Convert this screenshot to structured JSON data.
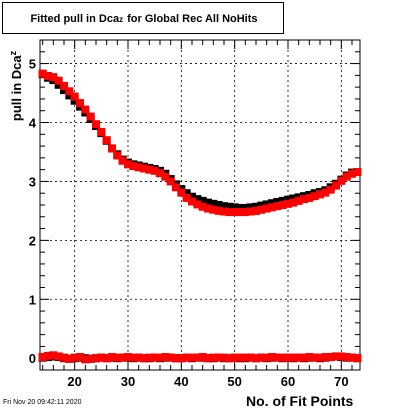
{
  "chart_data": {
    "type": "scatter",
    "title_prefix": "Fitted pull in Dca",
    "title_sub": "z",
    "title_suffix": " for Global Rec All NoHits",
    "xlabel": "No. of Fit Points",
    "ylabel_prefix": "pull in Dca",
    "ylabel_sub": "z",
    "xlim": [
      13.5,
      73.5
    ],
    "ylim": [
      -0.2,
      5.4
    ],
    "xticks": [
      "20",
      "30",
      "40",
      "50",
      "60",
      "70"
    ],
    "xtick_values": [
      20,
      30,
      40,
      50,
      60,
      70
    ],
    "yticks": [
      "0",
      "1",
      "2",
      "3",
      "4",
      "5"
    ],
    "ytick_values": [
      0,
      1,
      2,
      3,
      4,
      5
    ],
    "grid": true,
    "x": [
      14,
      15,
      16,
      17,
      18,
      19,
      20,
      21,
      22,
      23,
      24,
      25,
      26,
      27,
      28,
      29,
      30,
      31,
      32,
      33,
      34,
      35,
      36,
      37,
      38,
      39,
      40,
      41,
      42,
      43,
      44,
      45,
      46,
      47,
      48,
      49,
      50,
      51,
      52,
      53,
      54,
      55,
      56,
      57,
      58,
      59,
      60,
      61,
      62,
      63,
      64,
      65,
      66,
      67,
      68,
      69,
      70,
      71,
      72,
      73
    ],
    "series": [
      {
        "color": "#000000",
        "values": [
          4.82,
          4.76,
          4.72,
          4.64,
          4.55,
          4.46,
          4.37,
          4.27,
          4.17,
          4.06,
          3.94,
          3.82,
          3.69,
          3.56,
          3.46,
          3.37,
          3.32,
          3.29,
          3.27,
          3.25,
          3.23,
          3.21,
          3.18,
          3.13,
          3.04,
          2.95,
          2.87,
          2.8,
          2.74,
          2.7,
          2.67,
          2.64,
          2.62,
          2.6,
          2.58,
          2.57,
          2.56,
          2.55,
          2.55,
          2.56,
          2.57,
          2.59,
          2.61,
          2.63,
          2.65,
          2.67,
          2.69,
          2.71,
          2.73,
          2.75,
          2.77,
          2.8,
          2.82,
          2.85,
          2.9,
          2.96,
          3.03,
          3.1,
          3.15,
          3.16
        ]
      },
      {
        "color": "#ff0000",
        "values": [
          4.83,
          4.79,
          4.77,
          4.71,
          4.62,
          4.53,
          4.44,
          4.33,
          4.22,
          4.1,
          3.97,
          3.84,
          3.7,
          3.56,
          3.44,
          3.35,
          3.29,
          3.26,
          3.24,
          3.22,
          3.2,
          3.18,
          3.14,
          3.08,
          3.0,
          2.9,
          2.81,
          2.72,
          2.66,
          2.61,
          2.57,
          2.54,
          2.52,
          2.5,
          2.49,
          2.48,
          2.48,
          2.48,
          2.48,
          2.49,
          2.5,
          2.52,
          2.54,
          2.56,
          2.58,
          2.6,
          2.62,
          2.64,
          2.67,
          2.7,
          2.72,
          2.75,
          2.78,
          2.81,
          2.86,
          2.93,
          3.01,
          3.08,
          3.13,
          3.16
        ]
      },
      {
        "color": "#000000",
        "values": [
          0.01,
          0.02,
          0.03,
          0.02,
          0.0,
          -0.01,
          0.0,
          0.01,
          0.0,
          -0.01,
          0.0,
          0.01,
          0.0,
          0.01,
          0.0,
          0.01,
          0.01,
          0.0,
          0.01,
          0.0,
          0.0,
          0.01,
          0.0,
          0.01,
          0.01,
          0.0,
          0.0,
          0.01,
          0.0,
          0.01,
          0.01,
          0.0,
          0.0,
          0.01,
          0.0,
          0.0,
          0.01,
          0.0,
          0.0,
          0.01,
          0.0,
          0.01,
          0.0,
          0.01,
          0.01,
          0.0,
          0.01,
          0.0,
          0.01,
          0.0,
          0.01,
          0.01,
          0.0,
          0.01,
          0.02,
          0.03,
          0.02,
          0.01,
          0.01,
          0.0
        ]
      },
      {
        "color": "#ff0000",
        "values": [
          0.02,
          0.04,
          0.05,
          0.03,
          0.01,
          -0.01,
          0.01,
          0.02,
          -0.02,
          -0.01,
          0.0,
          0.01,
          0.0,
          0.02,
          0.01,
          0.01,
          0.02,
          0.01,
          0.01,
          0.0,
          0.01,
          0.01,
          0.01,
          0.02,
          0.01,
          0.0,
          0.0,
          0.01,
          0.01,
          0.01,
          0.02,
          0.0,
          0.01,
          0.01,
          0.01,
          0.0,
          0.01,
          0.01,
          0.01,
          0.01,
          0.0,
          0.01,
          0.01,
          0.02,
          0.01,
          0.01,
          0.01,
          0.01,
          0.01,
          0.01,
          0.02,
          0.01,
          0.01,
          0.02,
          0.02,
          0.03,
          0.03,
          0.02,
          0.01,
          0.0
        ]
      }
    ]
  },
  "footer": {
    "datestamp": "Fri Nov 20 09:42:11 2020"
  }
}
